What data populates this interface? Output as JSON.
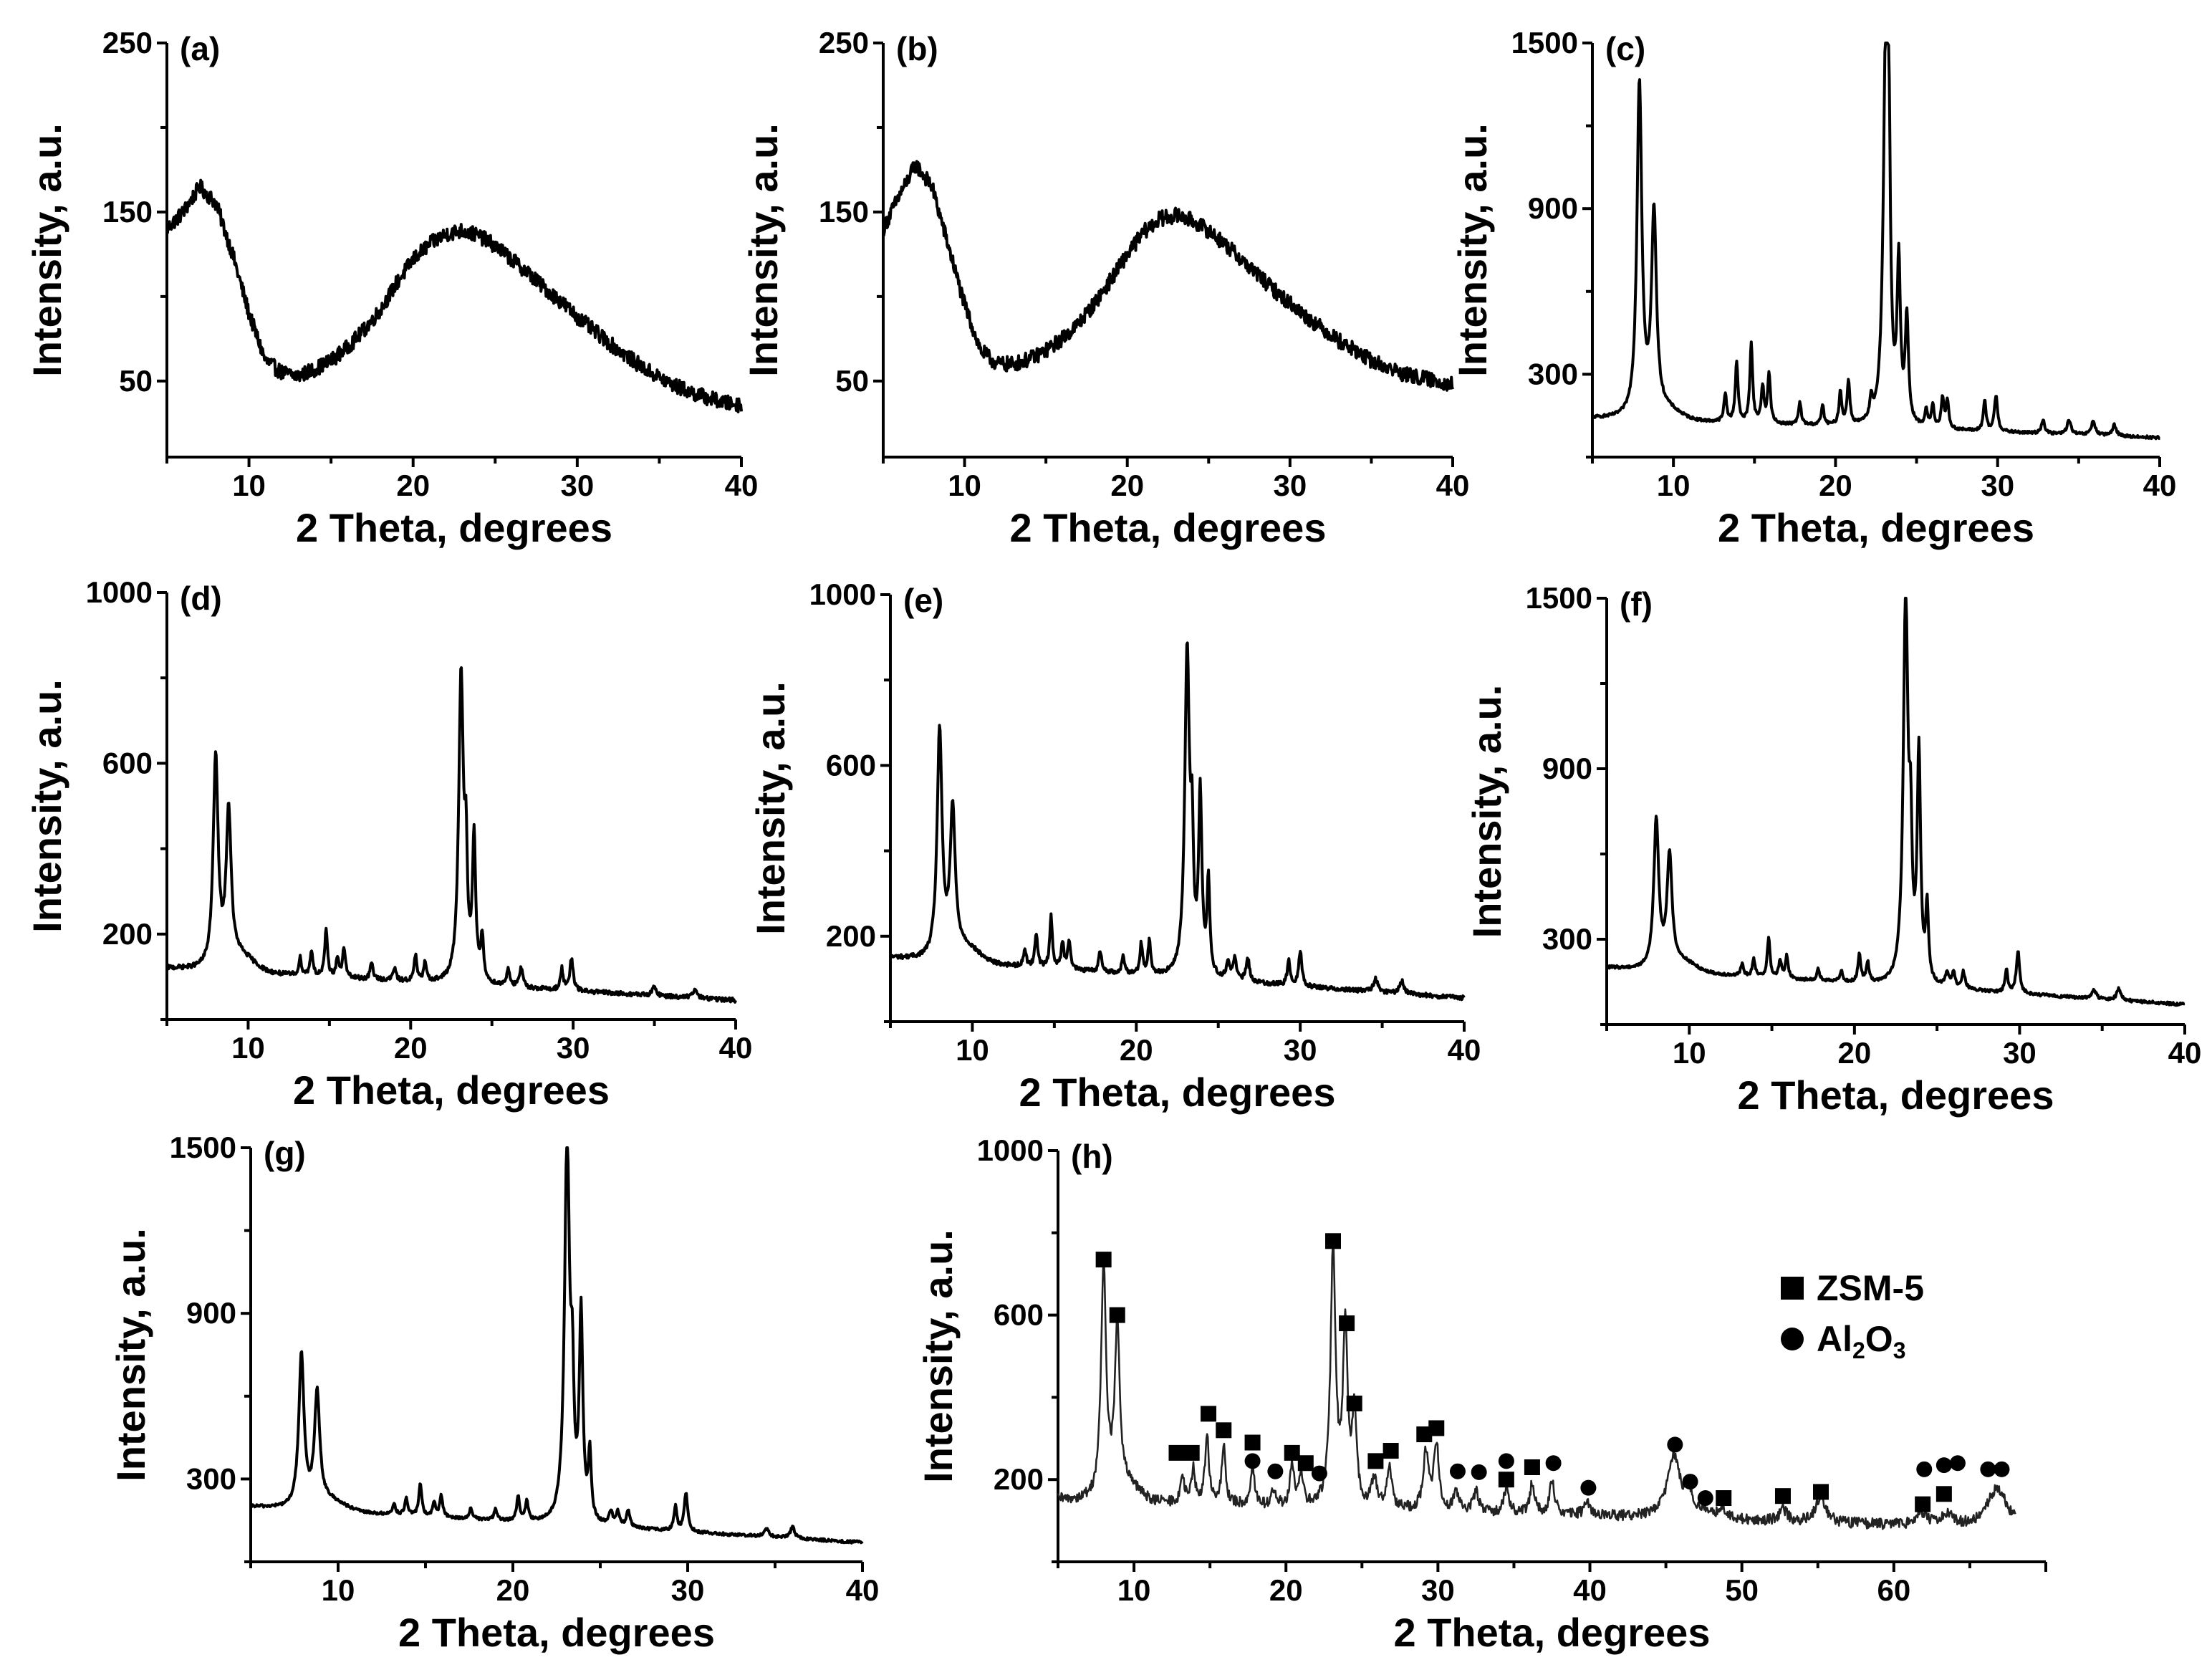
{
  "figure": {
    "legend": {
      "zsm5_marker": "square",
      "zsm5_label": "ZSM-5",
      "al2o3_marker": "circle",
      "al2o3_label_main": "Al",
      "al2o3_label_sub1": "2",
      "al2o3_label_mid": "O",
      "al2o3_label_sub2": "3"
    }
  },
  "chart_data": [
    {
      "id": "a",
      "panel_label": "(a)",
      "type": "line",
      "xlabel": "2 Theta, degrees",
      "ylabel": "Intensity, a.u.",
      "xlim": [
        5,
        40
      ],
      "ylim": [
        5,
        250
      ],
      "xticks": [
        10,
        20,
        30,
        40
      ],
      "yticks": [
        50,
        150,
        250
      ],
      "pattern": "amorphous",
      "series": [
        {
          "name": "(a)",
          "x": [
            5,
            6,
            7,
            8,
            9,
            10,
            11,
            12,
            13,
            14,
            15,
            16,
            17,
            18,
            19,
            20,
            21,
            22,
            23,
            24,
            25,
            26,
            27,
            28,
            29,
            30,
            31,
            32,
            33,
            34,
            35,
            36,
            37,
            38,
            39,
            40
          ],
          "values": [
            140,
            150,
            165,
            155,
            125,
            90,
            62,
            55,
            53,
            57,
            62,
            70,
            80,
            92,
            108,
            122,
            131,
            137,
            139,
            136,
            130,
            122,
            114,
            105,
            97,
            88,
            80,
            72,
            65,
            58,
            52,
            47,
            43,
            40,
            37,
            36
          ]
        }
      ]
    },
    {
      "id": "b",
      "panel_label": "(b)",
      "type": "line",
      "xlabel": "2 Theta, degrees",
      "ylabel": "Intensity, a.u.",
      "xlim": [
        5,
        40
      ],
      "ylim": [
        5,
        250
      ],
      "xticks": [
        10,
        20,
        30,
        40
      ],
      "yticks": [
        50,
        150,
        250
      ],
      "pattern": "amorphous",
      "series": [
        {
          "name": "(b)",
          "x": [
            5,
            6,
            7,
            8,
            9,
            10,
            11,
            12,
            13,
            14,
            15,
            16,
            17,
            18,
            19,
            20,
            21,
            22,
            23,
            24,
            25,
            26,
            27,
            28,
            29,
            30,
            31,
            32,
            33,
            34,
            35,
            36,
            37,
            38,
            39,
            40
          ],
          "values": [
            140,
            160,
            178,
            165,
            130,
            95,
            68,
            60,
            60,
            63,
            68,
            75,
            84,
            96,
            110,
            125,
            138,
            146,
            148,
            145,
            139,
            131,
            122,
            113,
            104,
            96,
            88,
            81,
            74,
            68,
            62,
            58,
            54,
            52,
            50,
            48
          ]
        }
      ]
    },
    {
      "id": "c",
      "panel_label": "(c)",
      "type": "line",
      "xlabel": "2 Theta, degrees",
      "ylabel": "Intensity, a.u.",
      "xlim": [
        5,
        40
      ],
      "ylim": [
        0,
        1500
      ],
      "xticks": [
        10,
        20,
        30,
        40
      ],
      "yticks": [
        300,
        900,
        1500
      ],
      "pattern": "crystalline",
      "baseline": [
        140,
        70
      ],
      "peaks": [
        [
          7.9,
          1210,
          0.18
        ],
        [
          8.8,
          720,
          0.18
        ],
        [
          13.2,
          100,
          0.1
        ],
        [
          13.9,
          220,
          0.1
        ],
        [
          14.8,
          290,
          0.1
        ],
        [
          15.5,
          130,
          0.1
        ],
        [
          15.9,
          180,
          0.1
        ],
        [
          17.8,
          80,
          0.1
        ],
        [
          19.2,
          70,
          0.1
        ],
        [
          20.3,
          120,
          0.1
        ],
        [
          20.8,
          160,
          0.1
        ],
        [
          22.2,
          70,
          0.1
        ],
        [
          23.1,
          1370,
          0.18
        ],
        [
          23.3,
          700,
          0.1
        ],
        [
          23.9,
          560,
          0.12
        ],
        [
          24.4,
          380,
          0.12
        ],
        [
          25.6,
          60,
          0.1
        ],
        [
          26.0,
          80,
          0.1
        ],
        [
          26.6,
          110,
          0.1
        ],
        [
          26.9,
          100,
          0.1
        ],
        [
          29.2,
          110,
          0.1
        ],
        [
          29.9,
          130,
          0.12
        ],
        [
          32.8,
          50,
          0.12
        ],
        [
          34.4,
          50,
          0.15
        ],
        [
          35.9,
          50,
          0.15
        ],
        [
          37.2,
          40,
          0.15
        ]
      ]
    },
    {
      "id": "d",
      "panel_label": "(d)",
      "type": "line",
      "xlabel": "2 Theta, degrees",
      "ylabel": "Intensity, a.u.",
      "xlim": [
        5,
        40
      ],
      "ylim": [
        0,
        1000
      ],
      "xticks": [
        10,
        20,
        30,
        40
      ],
      "yticks": [
        200,
        600,
        1000
      ],
      "pattern": "crystalline",
      "baseline": [
        120,
        45
      ],
      "peaks": [
        [
          8.0,
          490,
          0.18
        ],
        [
          8.8,
          350,
          0.18
        ],
        [
          13.2,
          40,
          0.1
        ],
        [
          13.9,
          60,
          0.1
        ],
        [
          14.8,
          110,
          0.1
        ],
        [
          15.5,
          45,
          0.1
        ],
        [
          15.9,
          70,
          0.1
        ],
        [
          17.6,
          40,
          0.1
        ],
        [
          19.0,
          30,
          0.1
        ],
        [
          20.3,
          60,
          0.1
        ],
        [
          20.9,
          45,
          0.1
        ],
        [
          23.1,
          720,
          0.17
        ],
        [
          23.4,
          250,
          0.1
        ],
        [
          23.9,
          330,
          0.12
        ],
        [
          24.4,
          100,
          0.1
        ],
        [
          26.0,
          40,
          0.12
        ],
        [
          26.8,
          45,
          0.12
        ],
        [
          29.3,
          50,
          0.1
        ],
        [
          29.9,
          75,
          0.12
        ],
        [
          35.0,
          20,
          0.15
        ],
        [
          37.5,
          20,
          0.15
        ]
      ]
    },
    {
      "id": "e",
      "panel_label": "(e)",
      "type": "line",
      "xlabel": "2 Theta, degrees",
      "ylabel": "Intensity, a.u.",
      "xlim": [
        5,
        40
      ],
      "ylim": [
        0,
        1000
      ],
      "xticks": [
        10,
        20,
        30,
        40
      ],
      "yticks": [
        200,
        600,
        1000
      ],
      "pattern": "crystalline",
      "baseline": [
        150,
        55
      ],
      "peaks": [
        [
          8.0,
          530,
          0.18
        ],
        [
          8.8,
          330,
          0.18
        ],
        [
          13.2,
          40,
          0.1
        ],
        [
          13.9,
          80,
          0.1
        ],
        [
          14.8,
          120,
          0.1
        ],
        [
          15.5,
          60,
          0.1
        ],
        [
          15.9,
          70,
          0.1
        ],
        [
          17.8,
          50,
          0.1
        ],
        [
          19.2,
          40,
          0.1
        ],
        [
          20.3,
          70,
          0.1
        ],
        [
          20.8,
          80,
          0.1
        ],
        [
          23.1,
          760,
          0.17
        ],
        [
          23.4,
          260,
          0.1
        ],
        [
          23.9,
          420,
          0.12
        ],
        [
          24.4,
          220,
          0.1
        ],
        [
          25.6,
          40,
          0.12
        ],
        [
          26.0,
          50,
          0.12
        ],
        [
          26.8,
          55,
          0.12
        ],
        [
          29.3,
          60,
          0.1
        ],
        [
          30.0,
          80,
          0.12
        ],
        [
          34.6,
          30,
          0.15
        ],
        [
          36.2,
          30,
          0.15
        ]
      ]
    },
    {
      "id": "f",
      "panel_label": "(f)",
      "type": "line",
      "xlabel": "2 Theta, degrees",
      "ylabel": "Intensity, a.u.",
      "xlim": [
        5,
        40
      ],
      "ylim": [
        0,
        1500
      ],
      "xticks": [
        10,
        20,
        30,
        40
      ],
      "yticks": [
        300,
        900,
        1500
      ],
      "pattern": "crystalline",
      "baseline": [
        200,
        70
      ],
      "peaks": [
        [
          8.0,
          520,
          0.18
        ],
        [
          8.8,
          380,
          0.18
        ],
        [
          13.2,
          40,
          0.1
        ],
        [
          13.9,
          60,
          0.1
        ],
        [
          14.8,
          140,
          0.1
        ],
        [
          15.5,
          60,
          0.1
        ],
        [
          15.9,
          80,
          0.1
        ],
        [
          17.8,
          40,
          0.1
        ],
        [
          19.2,
          40,
          0.1
        ],
        [
          20.3,
          100,
          0.1
        ],
        [
          20.8,
          70,
          0.1
        ],
        [
          23.1,
          1370,
          0.17
        ],
        [
          23.4,
          400,
          0.1
        ],
        [
          23.9,
          800,
          0.12
        ],
        [
          24.4,
          260,
          0.1
        ],
        [
          25.6,
          50,
          0.12
        ],
        [
          26.0,
          50,
          0.12
        ],
        [
          26.6,
          60,
          0.12
        ],
        [
          29.2,
          80,
          0.1
        ],
        [
          29.9,
          150,
          0.12
        ],
        [
          34.5,
          30,
          0.15
        ],
        [
          36.0,
          40,
          0.15
        ]
      ]
    },
    {
      "id": "g",
      "panel_label": "(g)",
      "type": "line",
      "xlabel": "2 Theta, degrees",
      "ylabel": "Intensity, a.u.",
      "xlim": [
        5,
        40
      ],
      "ylim": [
        0,
        1500
      ],
      "xticks": [
        10,
        20,
        30,
        40
      ],
      "yticks": [
        300,
        900,
        1500
      ],
      "pattern": "crystalline",
      "baseline": [
        200,
        70
      ],
      "peaks": [
        [
          7.9,
          550,
          0.18
        ],
        [
          8.8,
          400,
          0.18
        ],
        [
          13.2,
          40,
          0.1
        ],
        [
          13.9,
          60,
          0.1
        ],
        [
          14.7,
          120,
          0.1
        ],
        [
          15.5,
          50,
          0.1
        ],
        [
          15.9,
          80,
          0.1
        ],
        [
          17.6,
          40,
          0.1
        ],
        [
          19.0,
          40,
          0.1
        ],
        [
          20.3,
          90,
          0.1
        ],
        [
          20.8,
          70,
          0.1
        ],
        [
          23.1,
          1390,
          0.17
        ],
        [
          23.4,
          400,
          0.1
        ],
        [
          23.9,
          740,
          0.12
        ],
        [
          24.4,
          240,
          0.1
        ],
        [
          25.6,
          50,
          0.12
        ],
        [
          26.0,
          50,
          0.12
        ],
        [
          26.6,
          60,
          0.12
        ],
        [
          29.3,
          90,
          0.1
        ],
        [
          29.9,
          140,
          0.12
        ],
        [
          34.5,
          30,
          0.15
        ],
        [
          36.0,
          40,
          0.15
        ]
      ]
    },
    {
      "id": "h",
      "panel_label": "(h)",
      "type": "line",
      "xlabel": "2 Theta, degrees",
      "ylabel": "Intensity, a.u.",
      "xlim": [
        5,
        70
      ],
      "ylim": [
        0,
        1000
      ],
      "xticks": [
        10,
        20,
        30,
        40,
        50,
        60
      ],
      "yticks": [
        200,
        600,
        1000
      ],
      "pattern": "crystalline",
      "baseline": [
        150,
        80
      ],
      "peaks": [
        [
          8.0,
          560,
          0.2
        ],
        [
          8.9,
          390,
          0.2
        ],
        [
          13.2,
          60,
          0.15
        ],
        [
          13.9,
          80,
          0.15
        ],
        [
          14.8,
          170,
          0.15
        ],
        [
          15.9,
          140,
          0.15
        ],
        [
          17.8,
          100,
          0.15
        ],
        [
          19.2,
          40,
          0.15
        ],
        [
          20.4,
          100,
          0.15
        ],
        [
          21.0,
          80,
          0.15
        ],
        [
          23.1,
          620,
          0.2
        ],
        [
          23.9,
          430,
          0.18
        ],
        [
          24.5,
          220,
          0.18
        ],
        [
          25.8,
          70,
          0.2
        ],
        [
          26.8,
          100,
          0.2
        ],
        [
          29.2,
          140,
          0.2
        ],
        [
          29.9,
          160,
          0.2
        ],
        [
          31.2,
          50,
          0.2
        ],
        [
          32.5,
          50,
          0.2
        ],
        [
          34.5,
          60,
          0.2
        ],
        [
          36.2,
          70,
          0.2
        ],
        [
          37.5,
          80,
          0.2
        ],
        [
          39.8,
          30,
          0.25
        ],
        [
          45.5,
          150,
          0.5
        ],
        [
          46.5,
          60,
          0.3
        ],
        [
          47.5,
          20,
          0.3
        ],
        [
          48.7,
          30,
          0.3
        ],
        [
          52.7,
          30,
          0.3
        ],
        [
          55.2,
          60,
          0.4
        ],
        [
          61.8,
          30,
          0.4
        ],
        [
          63.5,
          30,
          0.4
        ],
        [
          66.8,
          95,
          0.8
        ]
      ],
      "markers": {
        "zsm5": [
          [
            8.0,
            735
          ],
          [
            8.9,
            600
          ],
          [
            12.8,
            265
          ],
          [
            13.8,
            265
          ],
          [
            14.9,
            360
          ],
          [
            15.9,
            320
          ],
          [
            17.8,
            290
          ],
          [
            20.4,
            265
          ],
          [
            21.3,
            240
          ],
          [
            23.1,
            780
          ],
          [
            24.0,
            580
          ],
          [
            24.5,
            385
          ],
          [
            25.9,
            245
          ],
          [
            26.9,
            270
          ],
          [
            29.1,
            310
          ],
          [
            29.9,
            325
          ],
          [
            34.5,
            200
          ],
          [
            36.2,
            230
          ],
          [
            48.8,
            155
          ],
          [
            52.7,
            160
          ],
          [
            55.2,
            170
          ],
          [
            61.9,
            140
          ],
          [
            63.3,
            165
          ]
        ],
        "al2o3": [
          [
            17.8,
            245
          ],
          [
            19.3,
            220
          ],
          [
            22.2,
            215
          ],
          [
            31.3,
            220
          ],
          [
            32.7,
            218
          ],
          [
            34.5,
            245
          ],
          [
            37.6,
            240
          ],
          [
            39.9,
            180
          ],
          [
            45.6,
            285
          ],
          [
            46.6,
            195
          ],
          [
            47.6,
            155
          ],
          [
            62.0,
            225
          ],
          [
            63.3,
            235
          ],
          [
            64.2,
            240
          ],
          [
            66.2,
            225
          ],
          [
            67.1,
            225
          ]
        ]
      }
    }
  ]
}
